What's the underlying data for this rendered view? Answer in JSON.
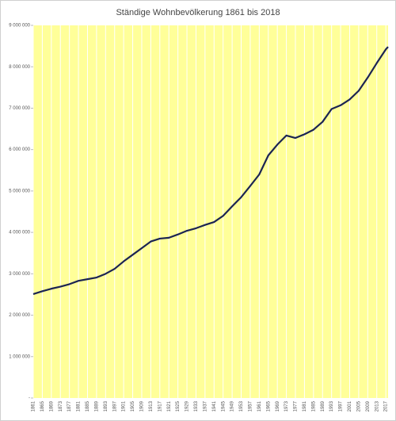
{
  "chart_data": {
    "type": "line",
    "title": "Ständige Wohnbevölkerung 1861 bis 2018",
    "x": [
      1861,
      1865,
      1869,
      1873,
      1877,
      1881,
      1885,
      1889,
      1893,
      1897,
      1901,
      1905,
      1909,
      1913,
      1917,
      1921,
      1925,
      1929,
      1933,
      1937,
      1941,
      1945,
      1949,
      1953,
      1957,
      1961,
      1965,
      1969,
      1973,
      1977,
      1981,
      1985,
      1989,
      1993,
      1997,
      2001,
      2005,
      2009,
      2013,
      2017,
      2018
    ],
    "values": [
      2510000,
      2580000,
      2640000,
      2690000,
      2750000,
      2830000,
      2870000,
      2910000,
      3000000,
      3120000,
      3300000,
      3460000,
      3620000,
      3780000,
      3850000,
      3870000,
      3950000,
      4040000,
      4100000,
      4180000,
      4250000,
      4400000,
      4630000,
      4850000,
      5120000,
      5400000,
      5860000,
      6120000,
      6340000,
      6280000,
      6370000,
      6480000,
      6670000,
      6980000,
      7070000,
      7210000,
      7420000,
      7740000,
      8090000,
      8420000,
      8480000
    ],
    "color": "#1b2452",
    "xlim": [
      1861,
      2018
    ],
    "xticks": [
      1861,
      1865,
      1869,
      1873,
      1877,
      1881,
      1885,
      1889,
      1893,
      1897,
      1901,
      1905,
      1909,
      1913,
      1917,
      1921,
      1925,
      1929,
      1933,
      1937,
      1941,
      1945,
      1949,
      1953,
      1957,
      1961,
      1965,
      1969,
      1973,
      1977,
      1981,
      1985,
      1989,
      1993,
      1997,
      2001,
      2005,
      2009,
      2013,
      2017
    ],
    "ylim": [
      0,
      9000000
    ],
    "yticks": [
      {
        "value": 0,
        "label": "-"
      },
      {
        "value": 1000000,
        "label": "1 000 000"
      },
      {
        "value": 2000000,
        "label": "2 000 000"
      },
      {
        "value": 3000000,
        "label": "3 000 000"
      },
      {
        "value": 4000000,
        "label": "4 000 000"
      },
      {
        "value": 5000000,
        "label": "5 000 000"
      },
      {
        "value": 6000000,
        "label": "6 000 000"
      },
      {
        "value": 7000000,
        "label": "7 000 000"
      },
      {
        "value": 8000000,
        "label": "8 000 000"
      },
      {
        "value": 9000000,
        "label": "9 000 000"
      }
    ],
    "grid": true
  }
}
